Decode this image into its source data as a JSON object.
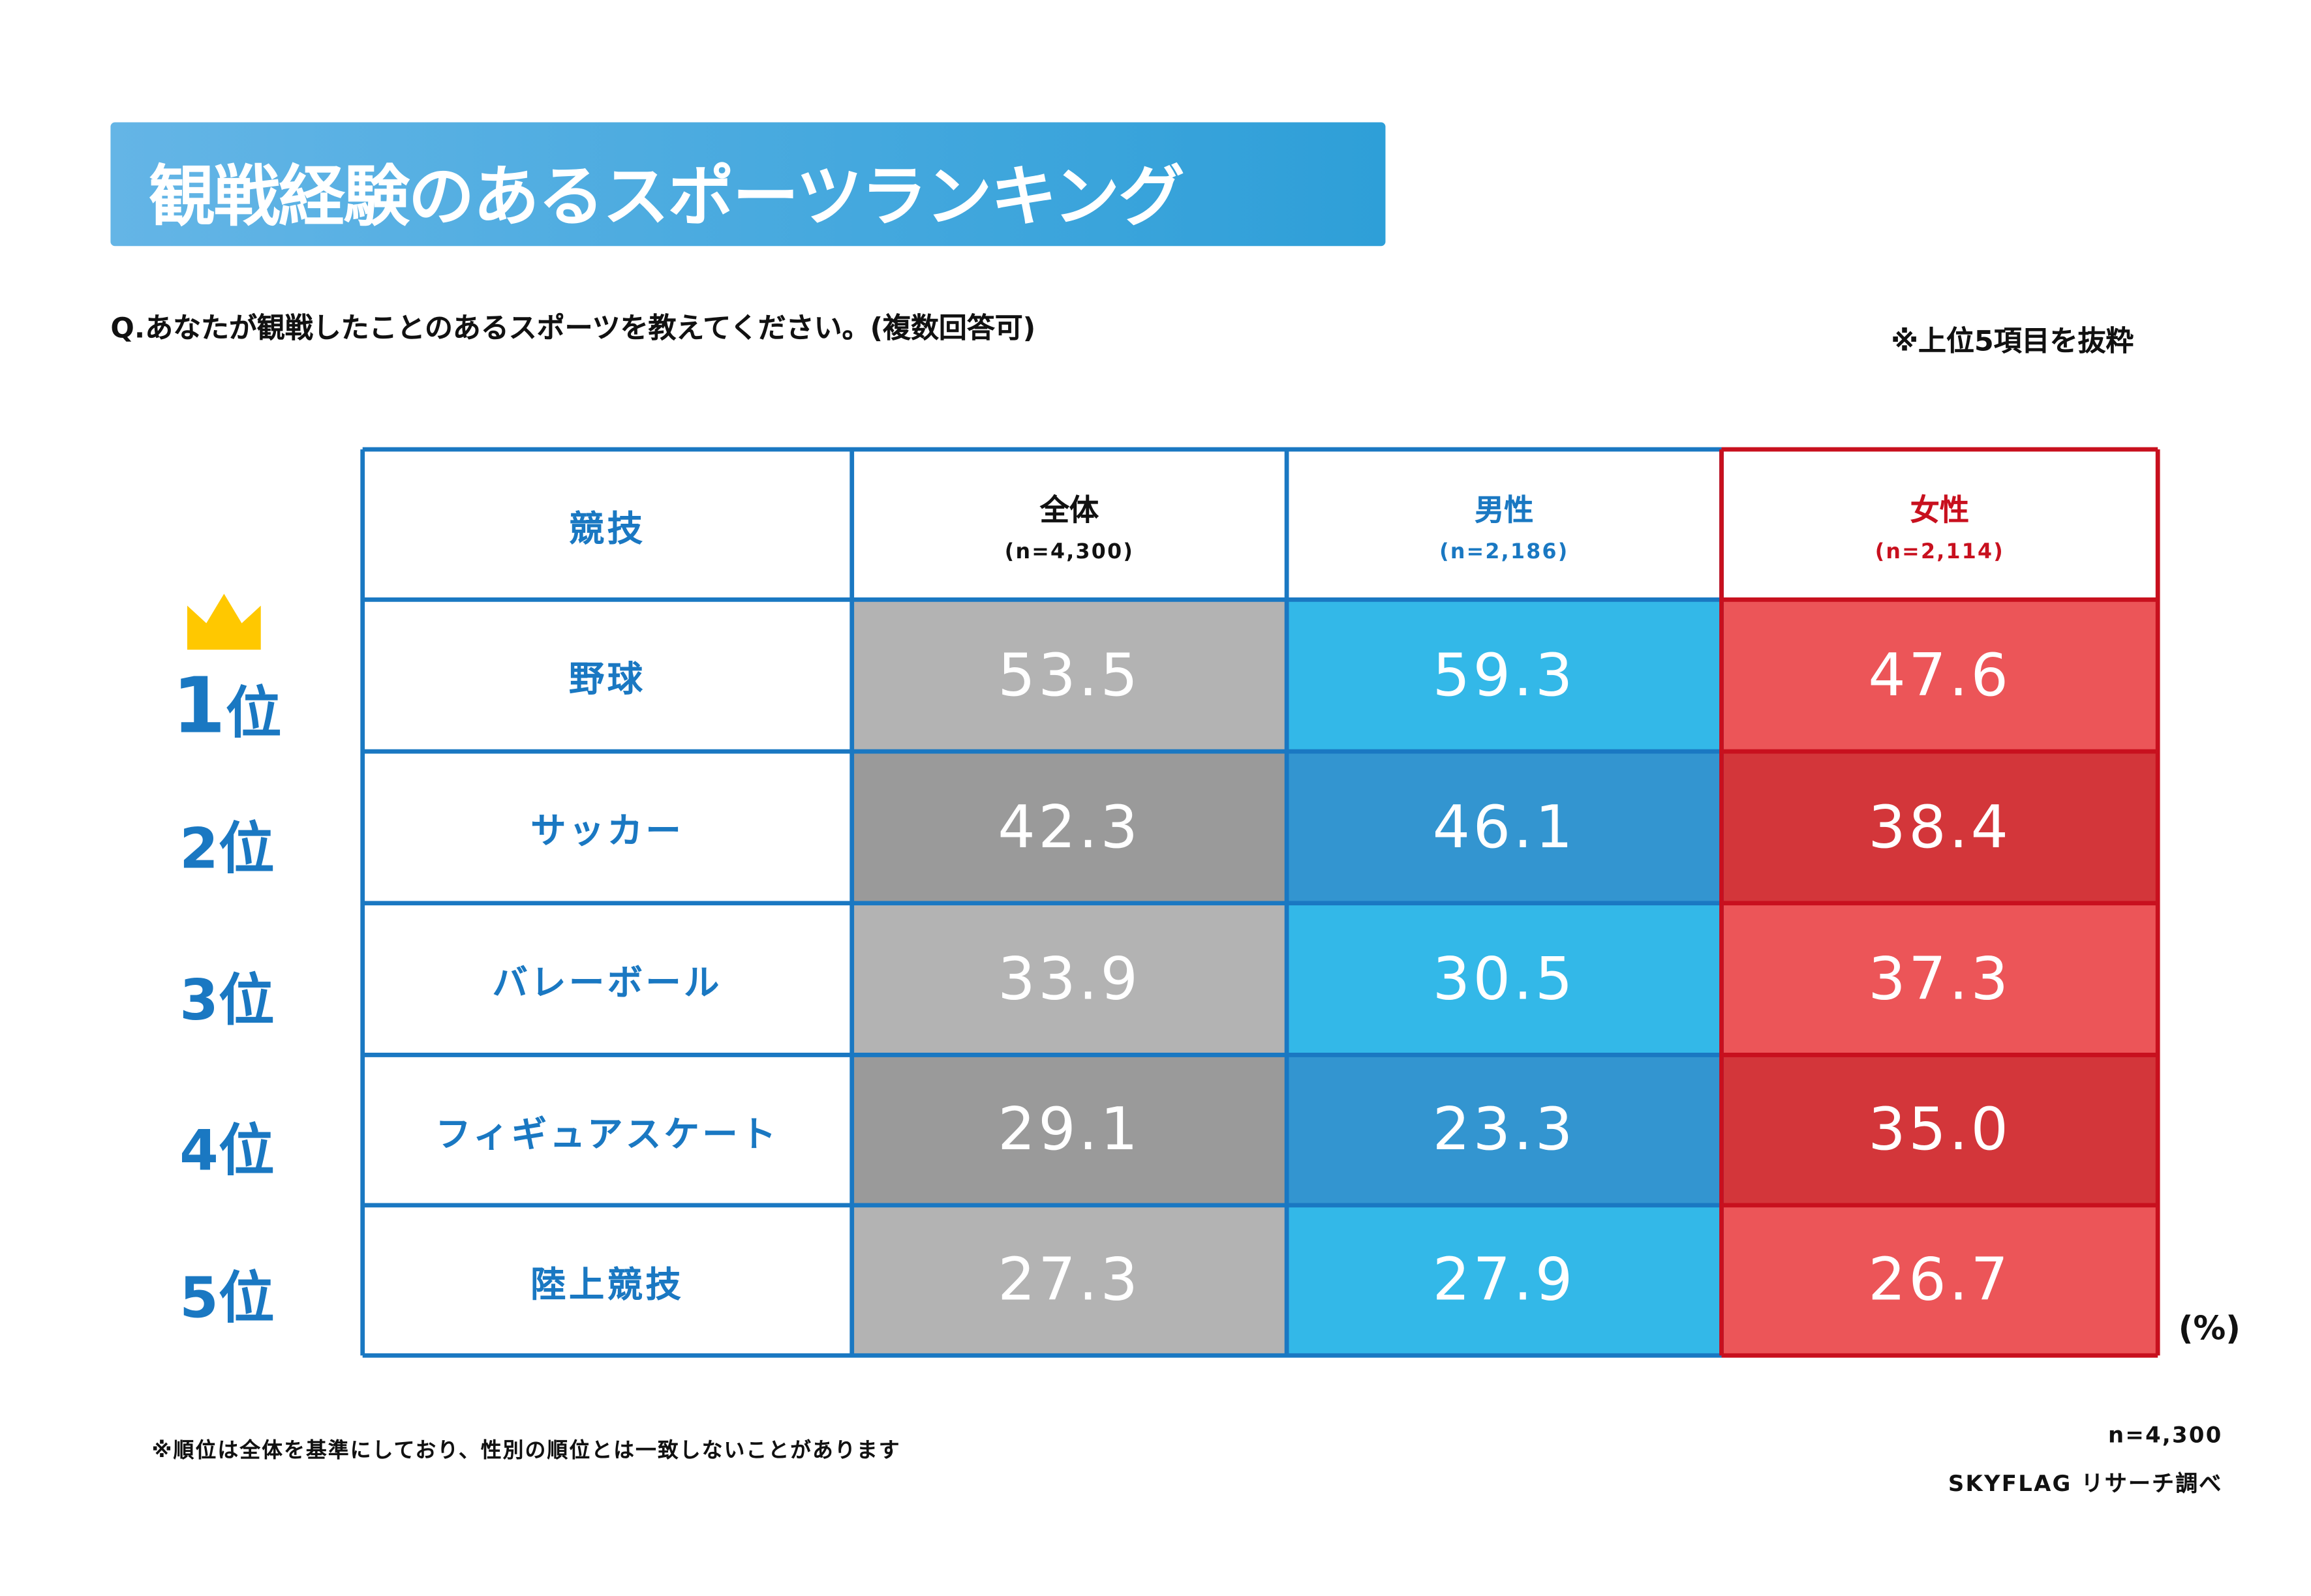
{
  "title": "観戦経験のあるスポーツランキング",
  "question": "Q.あなたが観戦したことのあるスポーツを教えてください。(複数回答可)",
  "note_top": "※上位5項目を抜粋",
  "unit": "(%)",
  "note_bottom": "※順位は全体を基準にしており、性別の順位とは一致しないことがあります",
  "sample": "n=4,300",
  "source": "SKYFLAG リサーチ調べ",
  "colors": {
    "border_blue": "#1a78c2",
    "border_red": "#c8101e",
    "gray_light": "#b3b3b3",
    "gray_dark": "#9a9a9a",
    "blue_light": "#33b8e8",
    "blue_dark": "#3395d0",
    "red_light": "#ec5558",
    "red_dark": "#d3363a",
    "crown": "#ffc800"
  },
  "chart_data": {
    "type": "table",
    "title": "観戦経験のあるスポーツランキング",
    "header": {
      "category": "競技"
    },
    "columns": [
      {
        "label": "全体",
        "n": "(n=4,300)"
      },
      {
        "label": "男性",
        "n": "(n=2,186)"
      },
      {
        "label": "女性",
        "n": "(n=2,114)"
      }
    ],
    "ranks": [
      "1",
      "2",
      "3",
      "4",
      "5"
    ],
    "rank_suffix": "位",
    "categories": [
      "野球",
      "サッカー",
      "バレーボール",
      "フィギュアスケート",
      "陸上競技"
    ],
    "series": [
      {
        "name": "全体",
        "values": [
          53.5,
          42.3,
          33.9,
          29.1,
          27.3
        ]
      },
      {
        "name": "男性",
        "values": [
          59.3,
          46.1,
          30.5,
          23.3,
          27.9
        ]
      },
      {
        "name": "女性",
        "values": [
          47.6,
          38.4,
          37.3,
          35.0,
          26.7
        ]
      }
    ],
    "value_labels": [
      [
        "53.5",
        "42.3",
        "33.9",
        "29.1",
        "27.3"
      ],
      [
        "59.3",
        "46.1",
        "30.5",
        "23.3",
        "27.9"
      ],
      [
        "47.6",
        "38.4",
        "37.3",
        "35.0",
        "26.7"
      ]
    ],
    "unit": "%"
  }
}
